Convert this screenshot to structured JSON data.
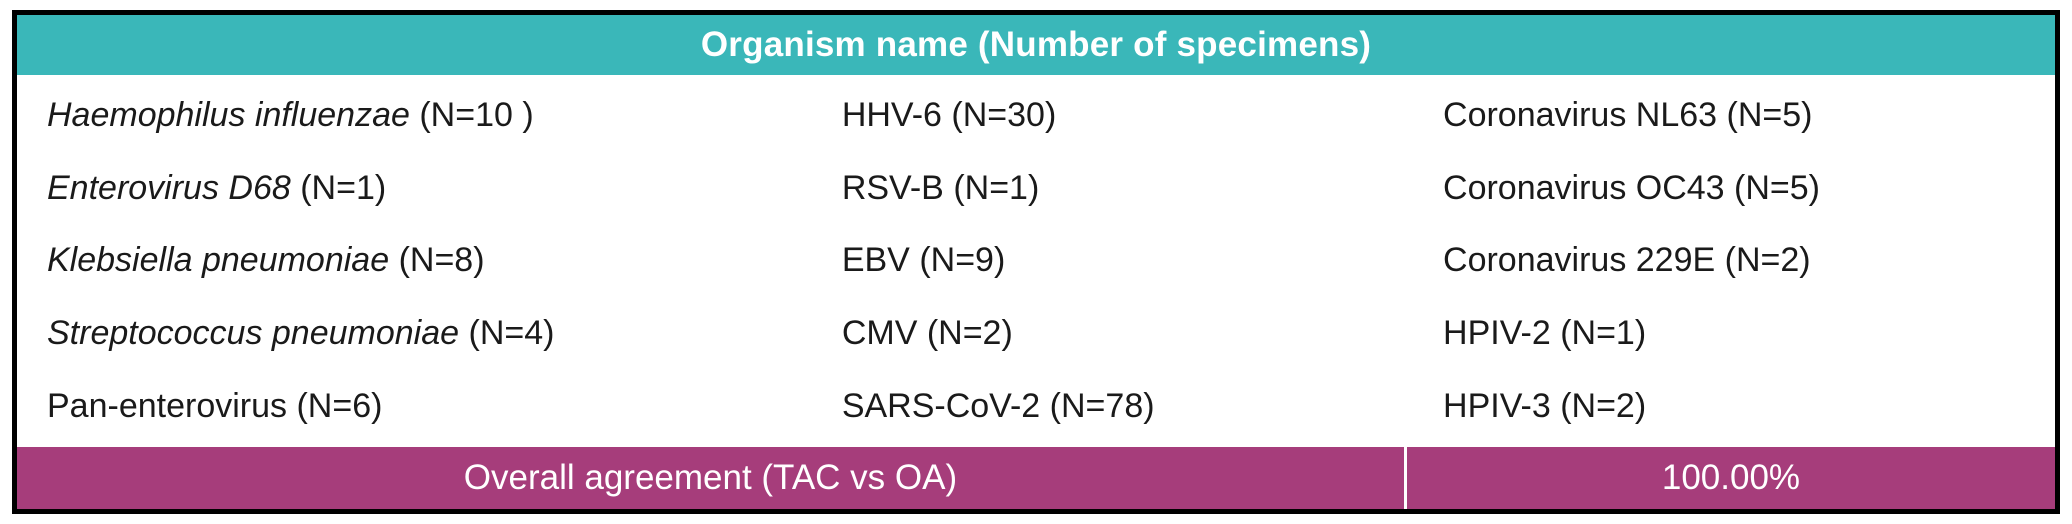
{
  "header": {
    "title": "Organism name (Number of specimens)"
  },
  "colors": {
    "header_bg": "#3ab7b9",
    "footer_bg": "#a63d7b",
    "border_color": "#000000",
    "text_color": "#1a1a1a"
  },
  "organisms": [
    {
      "name": "Haemophilus influenzae",
      "count": "(N=10 )",
      "italic": true
    },
    {
      "name": "HHV-6",
      "count": "(N=30)",
      "italic": false
    },
    {
      "name": "Coronavirus NL63",
      "count": "(N=5)",
      "italic": false
    },
    {
      "name": "Enterovirus D68",
      "count": "(N=1)",
      "italic": true
    },
    {
      "name": "RSV-B",
      "count": "(N=1)",
      "italic": false
    },
    {
      "name": "Coronavirus OC43",
      "count": "(N=5)",
      "italic": false
    },
    {
      "name": "Klebsiella pneumoniae",
      "count": "(N=8)",
      "italic": true
    },
    {
      "name": "EBV",
      "count": "(N=9)",
      "italic": false
    },
    {
      "name": "Coronavirus 229E",
      "count": "(N=2)",
      "italic": false
    },
    {
      "name": "Streptococcus pneumoniae",
      "count": "(N=4)",
      "italic": true
    },
    {
      "name": "CMV",
      "count": "(N=2)",
      "italic": false
    },
    {
      "name": "HPIV-2",
      "count": "(N=1)",
      "italic": false
    },
    {
      "name": "Pan-enterovirus",
      "count": "(N=6)",
      "italic": false
    },
    {
      "name": "SARS-CoV-2",
      "count": "(N=78)",
      "italic": false
    },
    {
      "name": "HPIV-3",
      "count": "(N=2)",
      "italic": false
    }
  ],
  "footer": {
    "label": "Overall agreement (TAC vs OA)",
    "value": "100.00%"
  }
}
